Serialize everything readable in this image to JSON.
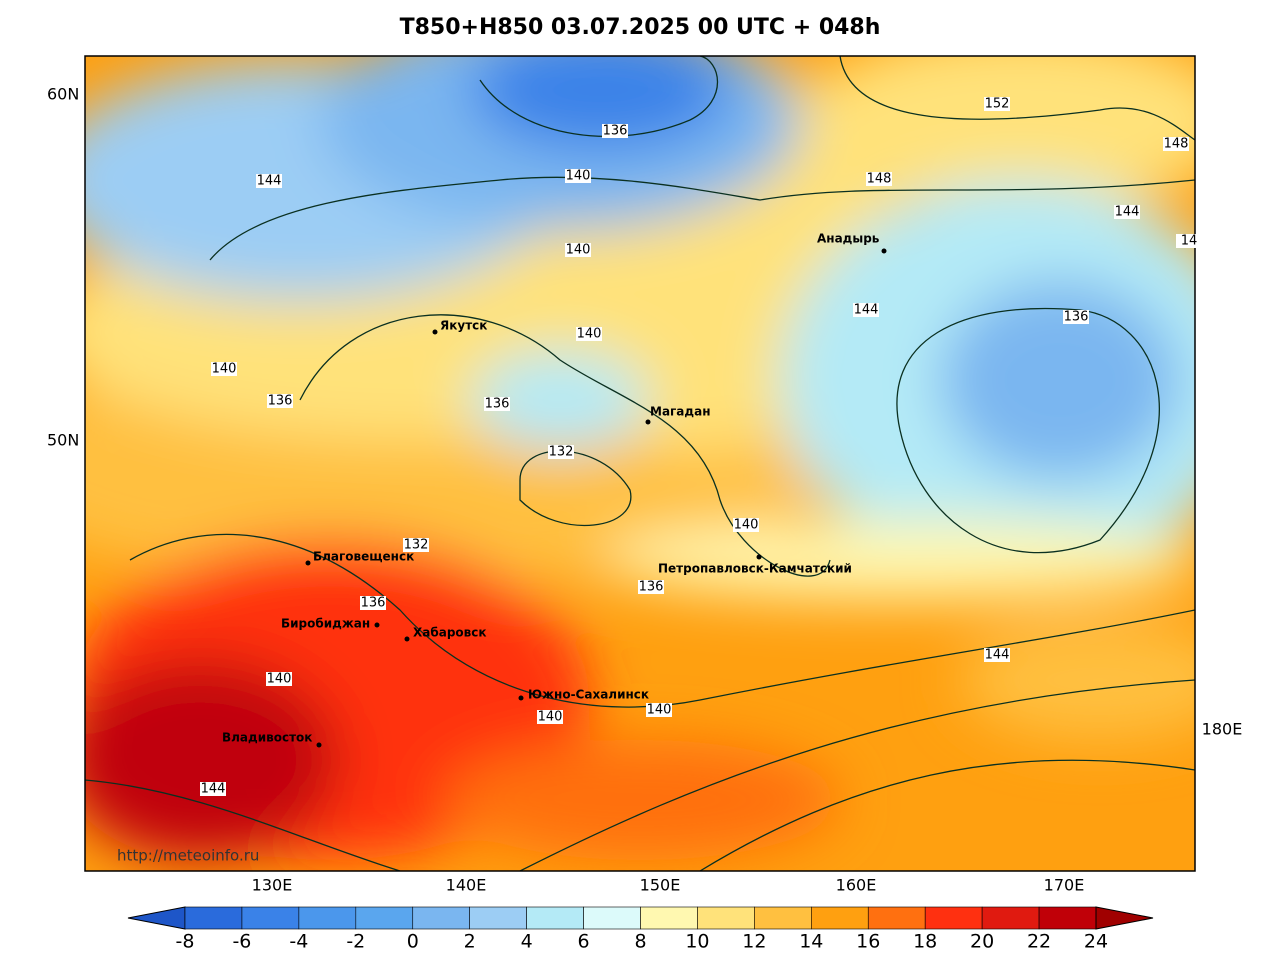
{
  "title": "T850+H850 03.07.2025 00 UTC + 048h",
  "lat_labels": [
    "60N",
    "50N"
  ],
  "lon_labels": [
    "130E",
    "140E",
    "150E",
    "160E",
    "170E",
    "180E"
  ],
  "watermark": "http://meteoinfo.ru",
  "cities": [
    "Якутск",
    "Магадан",
    "Анадырь",
    "Петропавловск-Камчатский",
    "Благовещенск",
    "Биробиджан",
    "Хабаровск",
    "Южно-Сахалинск",
    "Владивосток"
  ],
  "contour_labels": [
    136,
    140,
    144,
    140,
    148,
    152,
    148,
    144,
    14,
    144,
    136,
    140,
    140,
    136,
    136,
    132,
    140,
    132,
    136,
    136,
    144,
    140,
    140,
    140,
    144
  ],
  "colorbar": {
    "ticks": [
      -8,
      -6,
      -4,
      -2,
      0,
      2,
      4,
      6,
      8,
      10,
      12,
      14,
      16,
      18,
      20,
      22,
      24
    ],
    "colors": [
      "#1e56c8",
      "#2a6bdc",
      "#3a82e8",
      "#4b97ec",
      "#5aa6ee",
      "#7ab6f0",
      "#9ccdf4",
      "#b4eaf6",
      "#dcfafa",
      "#fff8b0",
      "#ffe27a",
      "#ffc040",
      "#ffa010",
      "#ff7010",
      "#ff3010",
      "#e01a10",
      "#c00008",
      "#a00000"
    ]
  }
}
